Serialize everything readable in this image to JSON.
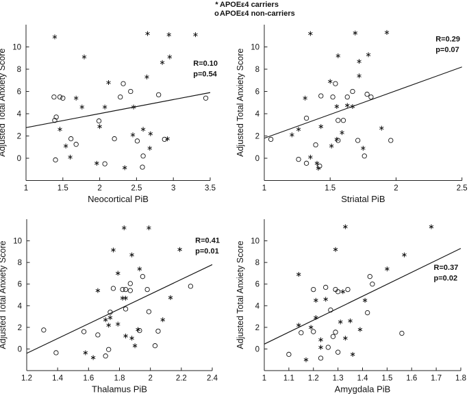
{
  "figure": {
    "legend": {
      "items": [
        {
          "marker": "*",
          "label": "APOEε4 carriers"
        },
        {
          "marker": "o",
          "label": "APOEε4 non-carriers"
        }
      ]
    },
    "ylabel": "Adjusted Total Anxiety Score"
  },
  "chart_data": [
    {
      "type": "scatter",
      "xlabel": "Neocortical PiB",
      "ylabel": "Adjusted Total Anxiety Score",
      "xlim": [
        1,
        3.5
      ],
      "ylim": [
        -2,
        12
      ],
      "xticks": [
        1,
        1.5,
        2,
        2.5,
        3,
        3.5
      ],
      "yticks": [
        0,
        2,
        4,
        6,
        8,
        10
      ],
      "grid": false,
      "annotation": {
        "lines": [
          "R=0.10",
          "p=0.54"
        ],
        "x": 3.27,
        "y": 8.3
      },
      "regression_line": {
        "x": [
          1,
          3.5
        ],
        "y": [
          2.75,
          5.9
        ]
      },
      "series": [
        {
          "name": "APOEε4 carriers",
          "marker": "asterisk",
          "points": [
            [
              1.39,
              10.9
            ],
            [
              1.79,
              9.1
            ],
            [
              2.65,
              11.2
            ],
            [
              2.94,
              11.1
            ],
            [
              3.3,
              11.1
            ],
            [
              2.95,
              9.1
            ],
            [
              2.85,
              8.6
            ],
            [
              2.64,
              7.3
            ],
            [
              2.12,
              6.8
            ],
            [
              1.68,
              5.4
            ],
            [
              1.76,
              4.6
            ],
            [
              2.07,
              4.6
            ],
            [
              2.46,
              4.6
            ],
            [
              1.46,
              2.6
            ],
            [
              2.0,
              2.85
            ],
            [
              2.45,
              2.1
            ],
            [
              2.59,
              2.6
            ],
            [
              2.69,
              2.2
            ],
            [
              2.92,
              1.75
            ],
            [
              1.54,
              1.1
            ],
            [
              2.68,
              0.9
            ],
            [
              1.6,
              0.1
            ],
            [
              1.96,
              -0.45
            ],
            [
              2.34,
              -0.85
            ]
          ]
        },
        {
          "name": "APOEε4 non-carriers",
          "marker": "circle",
          "points": [
            [
              1.38,
              5.5
            ],
            [
              1.46,
              5.5
            ],
            [
              1.5,
              5.4
            ],
            [
              2.32,
              6.7
            ],
            [
              2.42,
              6.0
            ],
            [
              2.28,
              5.5
            ],
            [
              2.8,
              5.7
            ],
            [
              3.44,
              5.4
            ],
            [
              1.41,
              3.7
            ],
            [
              1.39,
              3.4
            ],
            [
              1.99,
              3.35
            ],
            [
              1.61,
              1.75
            ],
            [
              1.68,
              1.25
            ],
            [
              2.2,
              1.75
            ],
            [
              2.51,
              1.55
            ],
            [
              2.88,
              1.7
            ],
            [
              1.4,
              -0.15
            ],
            [
              2.07,
              -0.5
            ],
            [
              2.59,
              0.2
            ],
            [
              2.58,
              -0.8
            ]
          ]
        }
      ]
    },
    {
      "type": "scatter",
      "xlabel": "Striatal PiB",
      "ylabel": "Adjusted Total Anxiety Score",
      "xlim": [
        1,
        2.5
      ],
      "ylim": [
        -2,
        12
      ],
      "xticks": [
        1,
        1.5,
        2,
        2.5
      ],
      "yticks": [
        0,
        2,
        4,
        6,
        8,
        10
      ],
      "grid": false,
      "annotation": {
        "lines": [
          "R=0.29",
          "p=0.07"
        ],
        "x": 2.3,
        "y": 10.5
      },
      "regression_line": {
        "x": [
          1,
          2.5
        ],
        "y": [
          1.8,
          8.2
        ]
      },
      "series": [
        {
          "name": "APOEε4 carriers",
          "marker": "asterisk",
          "points": [
            [
              1.35,
              11.2
            ],
            [
              1.69,
              11.25
            ],
            [
              1.93,
              11.3
            ],
            [
              1.56,
              9.2
            ],
            [
              1.79,
              9.3
            ],
            [
              1.72,
              8.7
            ],
            [
              1.72,
              7.4
            ],
            [
              1.5,
              6.9
            ],
            [
              1.31,
              5.4
            ],
            [
              1.55,
              4.65
            ],
            [
              1.63,
              4.75
            ],
            [
              1.67,
              4.65
            ],
            [
              1.21,
              2.1
            ],
            [
              1.26,
              2.6
            ],
            [
              1.43,
              2.85
            ],
            [
              1.59,
              2.3
            ],
            [
              1.55,
              1.7
            ],
            [
              1.51,
              1.1
            ],
            [
              1.89,
              2.7
            ],
            [
              1.75,
              0.9
            ],
            [
              1.35,
              0.1
            ],
            [
              1.4,
              -0.45
            ],
            [
              1.41,
              -0.9
            ]
          ]
        },
        {
          "name": "APOEε4 non-carriers",
          "marker": "circle",
          "points": [
            [
              1.05,
              1.7
            ],
            [
              1.32,
              3.6
            ],
            [
              1.56,
              3.4
            ],
            [
              1.6,
              3.4
            ],
            [
              1.54,
              6.7
            ],
            [
              1.43,
              5.6
            ],
            [
              1.52,
              5.5
            ],
            [
              1.63,
              5.5
            ],
            [
              1.67,
              6.0
            ],
            [
              1.78,
              5.75
            ],
            [
              1.81,
              5.5
            ],
            [
              1.39,
              1.2
            ],
            [
              1.56,
              1.6
            ],
            [
              1.71,
              1.6
            ],
            [
              1.96,
              1.6
            ],
            [
              1.26,
              -0.1
            ],
            [
              1.32,
              -0.45
            ],
            [
              1.42,
              -0.7
            ],
            [
              1.76,
              0.2
            ]
          ]
        }
      ]
    },
    {
      "type": "scatter",
      "xlabel": "Thalamus PiB",
      "ylabel": "Adjusted Total Anxiety Score",
      "xlim": [
        1.2,
        2.4
      ],
      "ylim": [
        -2,
        12
      ],
      "xticks": [
        1.2,
        1.4,
        1.6,
        1.8,
        2,
        2.2,
        2.4
      ],
      "yticks": [
        0,
        2,
        4,
        6,
        8,
        10
      ],
      "grid": false,
      "annotation": {
        "lines": [
          "R=0.41",
          "p=0.01"
        ],
        "x": 2.29,
        "y": 9.8
      },
      "regression_line": {
        "x": [
          1.2,
          2.4
        ],
        "y": [
          -0.4,
          7.8
        ]
      },
      "series": [
        {
          "name": "APOEε4 carriers",
          "marker": "asterisk",
          "points": [
            [
              1.83,
              11.2
            ],
            [
              1.99,
              11.2
            ],
            [
              1.76,
              9.15
            ],
            [
              1.88,
              8.7
            ],
            [
              2.19,
              9.2
            ],
            [
              1.93,
              7.4
            ],
            [
              1.79,
              7.0
            ],
            [
              1.66,
              5.4
            ],
            [
              1.82,
              4.7
            ],
            [
              1.84,
              4.7
            ],
            [
              2.13,
              4.75
            ],
            [
              1.71,
              2.7
            ],
            [
              1.74,
              2.9
            ],
            [
              1.73,
              2.2
            ],
            [
              1.79,
              2.3
            ],
            [
              1.92,
              1.8
            ],
            [
              1.84,
              1.2
            ],
            [
              1.88,
              1.0
            ],
            [
              1.9,
              0.3
            ],
            [
              2.08,
              2.7
            ],
            [
              1.58,
              -0.35
            ],
            [
              1.63,
              -0.8
            ]
          ]
        },
        {
          "name": "APOEε4 non-carriers",
          "marker": "circle",
          "points": [
            [
              1.76,
              5.6
            ],
            [
              1.82,
              5.5
            ],
            [
              1.84,
              5.5
            ],
            [
              1.87,
              5.4
            ],
            [
              1.87,
              6.05
            ],
            [
              1.95,
              6.7
            ],
            [
              1.98,
              5.5
            ],
            [
              2.26,
              5.8
            ],
            [
              1.31,
              1.75
            ],
            [
              1.57,
              1.6
            ],
            [
              1.66,
              1.3
            ],
            [
              1.74,
              3.4
            ],
            [
              1.84,
              3.7
            ],
            [
              1.93,
              1.7
            ],
            [
              1.99,
              3.45
            ],
            [
              2.05,
              1.65
            ],
            [
              2.03,
              0.3
            ],
            [
              1.73,
              -0.05
            ],
            [
              1.39,
              -0.35
            ],
            [
              1.71,
              -0.65
            ]
          ]
        }
      ]
    },
    {
      "type": "scatter",
      "xlabel": "Amygdala PiB",
      "ylabel": "Adjusted Total Anxiety Score",
      "xlim": [
        1,
        1.8
      ],
      "ylim": [
        -2,
        12
      ],
      "xticks": [
        1,
        1.1,
        1.2,
        1.3,
        1.4,
        1.5,
        1.6,
        1.7,
        1.8
      ],
      "yticks": [
        0,
        2,
        4,
        6,
        8,
        10
      ],
      "grid": false,
      "annotation": {
        "lines": [
          "R=0.37",
          "p=0.02"
        ],
        "x": 1.69,
        "y": 7.3
      },
      "regression_line": {
        "x": [
          1,
          1.8
        ],
        "y": [
          0.45,
          9.3
        ]
      },
      "series": [
        {
          "name": "APOEε4 carriers",
          "marker": "asterisk",
          "points": [
            [
              1.33,
              11.3
            ],
            [
              1.68,
              11.3
            ],
            [
              1.29,
              9.2
            ],
            [
              1.57,
              8.7
            ],
            [
              1.5,
              7.4
            ],
            [
              1.14,
              6.9
            ],
            [
              1.32,
              5.3
            ],
            [
              1.21,
              4.5
            ],
            [
              1.25,
              4.6
            ],
            [
              1.41,
              4.5
            ],
            [
              1.14,
              2.2
            ],
            [
              1.19,
              2.0
            ],
            [
              1.21,
              2.9
            ],
            [
              1.31,
              2.5
            ],
            [
              1.35,
              2.6
            ],
            [
              1.39,
              1.8
            ],
            [
              1.33,
              1.0
            ],
            [
              1.23,
              0.85
            ],
            [
              1.23,
              0.15
            ],
            [
              1.17,
              -1.0
            ],
            [
              1.36,
              -0.5
            ]
          ]
        },
        {
          "name": "APOEε4 non-carriers",
          "marker": "circle",
          "points": [
            [
              1.1,
              -0.5
            ],
            [
              1.15,
              1.5
            ],
            [
              1.2,
              1.6
            ],
            [
              1.27,
              3.6
            ],
            [
              1.28,
              1.15
            ],
            [
              1.29,
              1.55
            ],
            [
              1.26,
              0.15
            ],
            [
              1.3,
              -0.3
            ],
            [
              1.23,
              -0.85
            ],
            [
              1.42,
              3.35
            ],
            [
              1.56,
              1.45
            ],
            [
              1.2,
              5.5
            ],
            [
              1.25,
              5.7
            ],
            [
              1.29,
              5.5
            ],
            [
              1.3,
              5.3
            ],
            [
              1.34,
              5.5
            ],
            [
              1.43,
              6.7
            ],
            [
              1.44,
              6.0
            ]
          ]
        }
      ]
    }
  ]
}
